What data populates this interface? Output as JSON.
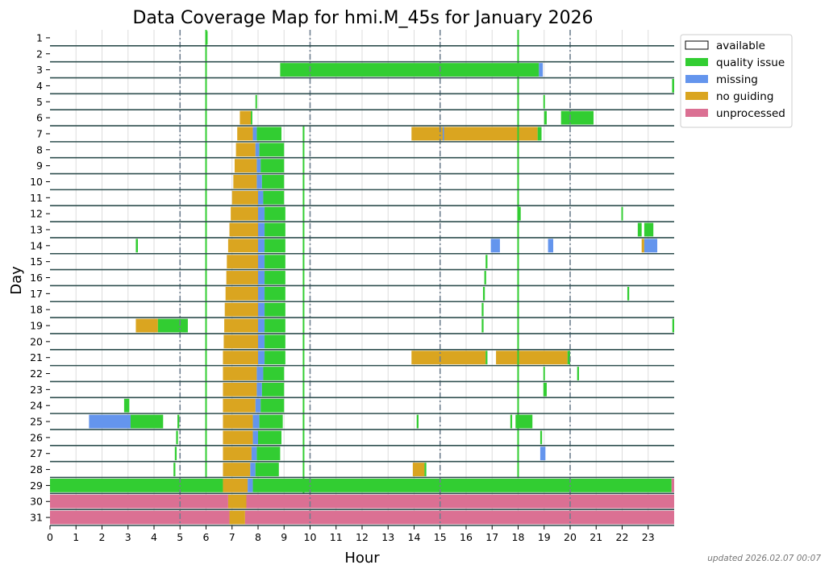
{
  "chart_data": {
    "type": "coverage-map",
    "title": "Data Coverage Map for hmi.M_45s for January 2026",
    "xlabel": "Hour",
    "ylabel": "Day",
    "xlim": [
      0,
      24
    ],
    "x_ticks": [
      "0",
      "1",
      "2",
      "3",
      "4",
      "5",
      "6",
      "7",
      "8",
      "9",
      "10",
      "11",
      "12",
      "13",
      "14",
      "15",
      "16",
      "17",
      "18",
      "19",
      "20",
      "21",
      "22",
      "23"
    ],
    "days": [
      "1",
      "2",
      "3",
      "4",
      "5",
      "6",
      "7",
      "8",
      "9",
      "10",
      "11",
      "12",
      "13",
      "14",
      "15",
      "16",
      "17",
      "18",
      "19",
      "20",
      "21",
      "22",
      "23",
      "24",
      "25",
      "26",
      "27",
      "28",
      "29",
      "30",
      "31"
    ],
    "dashed_hours": [
      5,
      10,
      15,
      20
    ],
    "legend": [
      {
        "key": "available",
        "label": "available",
        "color": "#ffffff"
      },
      {
        "key": "quality",
        "label": "quality issue",
        "color": "#32cd32"
      },
      {
        "key": "missing",
        "label": "missing",
        "color": "#6495ed"
      },
      {
        "key": "noguide",
        "label": "no guiding",
        "color": "#daa520"
      },
      {
        "key": "unproc",
        "label": "unprocessed",
        "color": "#db7093"
      }
    ],
    "colors": {
      "quality": "#32cd32",
      "missing": "#6495ed",
      "noguide": "#daa520",
      "unproc": "#db7093",
      "row_line": "#2f4f4f"
    },
    "segments": [
      {
        "day": 1,
        "type": "quality",
        "start": 6.0,
        "end": 6.06
      },
      {
        "day": 1,
        "type": "quality",
        "start": 17.97,
        "end": 18.03
      },
      {
        "day": 3,
        "type": "quality",
        "start": 8.85,
        "end": 18.8
      },
      {
        "day": 3,
        "type": "missing",
        "start": 18.8,
        "end": 18.95
      },
      {
        "day": 4,
        "type": "quality",
        "start": 23.92,
        "end": 24.0
      },
      {
        "day": 5,
        "type": "quality",
        "start": 7.9,
        "end": 7.96
      },
      {
        "day": 5,
        "type": "quality",
        "start": 18.97,
        "end": 19.03
      },
      {
        "day": 6,
        "type": "noguide",
        "start": 7.3,
        "end": 7.72
      },
      {
        "day": 6,
        "type": "quality",
        "start": 7.72,
        "end": 7.78
      },
      {
        "day": 6,
        "type": "quality",
        "start": 19.0,
        "end": 19.1
      },
      {
        "day": 6,
        "type": "quality",
        "start": 19.65,
        "end": 20.9
      },
      {
        "day": 7,
        "type": "noguide",
        "start": 7.2,
        "end": 7.8
      },
      {
        "day": 7,
        "type": "missing",
        "start": 7.8,
        "end": 7.95
      },
      {
        "day": 7,
        "type": "quality",
        "start": 7.95,
        "end": 8.9
      },
      {
        "day": 7,
        "type": "quality",
        "start": 9.72,
        "end": 9.78
      },
      {
        "day": 7,
        "type": "noguide",
        "start": 13.9,
        "end": 18.75
      },
      {
        "day": 7,
        "type": "missing",
        "start": 15.1,
        "end": 15.15
      },
      {
        "day": 7,
        "type": "quality",
        "start": 18.75,
        "end": 18.9
      },
      {
        "day": 8,
        "type": "noguide",
        "start": 7.15,
        "end": 7.9
      },
      {
        "day": 8,
        "type": "missing",
        "start": 7.9,
        "end": 8.05
      },
      {
        "day": 8,
        "type": "quality",
        "start": 8.05,
        "end": 9.0
      },
      {
        "day": 9,
        "type": "noguide",
        "start": 7.1,
        "end": 7.95
      },
      {
        "day": 9,
        "type": "missing",
        "start": 7.95,
        "end": 8.1
      },
      {
        "day": 9,
        "type": "quality",
        "start": 8.1,
        "end": 9.0
      },
      {
        "day": 10,
        "type": "noguide",
        "start": 7.05,
        "end": 7.95
      },
      {
        "day": 10,
        "type": "missing",
        "start": 7.95,
        "end": 8.15
      },
      {
        "day": 10,
        "type": "quality",
        "start": 8.15,
        "end": 9.0
      },
      {
        "day": 11,
        "type": "noguide",
        "start": 7.0,
        "end": 8.0
      },
      {
        "day": 11,
        "type": "missing",
        "start": 8.0,
        "end": 8.2
      },
      {
        "day": 11,
        "type": "quality",
        "start": 8.2,
        "end": 9.0
      },
      {
        "day": 12,
        "type": "noguide",
        "start": 6.95,
        "end": 8.0
      },
      {
        "day": 12,
        "type": "missing",
        "start": 8.0,
        "end": 8.25
      },
      {
        "day": 12,
        "type": "quality",
        "start": 8.25,
        "end": 9.05
      },
      {
        "day": 12,
        "type": "quality",
        "start": 18.0,
        "end": 18.1
      },
      {
        "day": 12,
        "type": "quality",
        "start": 21.97,
        "end": 22.03
      },
      {
        "day": 13,
        "type": "noguide",
        "start": 6.9,
        "end": 8.0
      },
      {
        "day": 13,
        "type": "missing",
        "start": 8.0,
        "end": 8.25
      },
      {
        "day": 13,
        "type": "quality",
        "start": 8.25,
        "end": 9.05
      },
      {
        "day": 13,
        "type": "quality",
        "start": 22.6,
        "end": 22.75
      },
      {
        "day": 13,
        "type": "quality",
        "start": 22.85,
        "end": 23.2
      },
      {
        "day": 14,
        "type": "quality",
        "start": 3.3,
        "end": 3.38
      },
      {
        "day": 14,
        "type": "noguide",
        "start": 6.85,
        "end": 8.0
      },
      {
        "day": 14,
        "type": "missing",
        "start": 8.0,
        "end": 8.25
      },
      {
        "day": 14,
        "type": "quality",
        "start": 8.25,
        "end": 9.05
      },
      {
        "day": 14,
        "type": "missing",
        "start": 16.95,
        "end": 17.3
      },
      {
        "day": 14,
        "type": "missing",
        "start": 19.15,
        "end": 19.35
      },
      {
        "day": 14,
        "type": "noguide",
        "start": 22.75,
        "end": 22.85
      },
      {
        "day": 14,
        "type": "missing",
        "start": 22.85,
        "end": 23.35
      },
      {
        "day": 15,
        "type": "noguide",
        "start": 6.8,
        "end": 8.0
      },
      {
        "day": 15,
        "type": "missing",
        "start": 8.0,
        "end": 8.25
      },
      {
        "day": 15,
        "type": "quality",
        "start": 8.25,
        "end": 9.05
      },
      {
        "day": 15,
        "type": "quality",
        "start": 16.75,
        "end": 16.82
      },
      {
        "day": 16,
        "type": "noguide",
        "start": 6.78,
        "end": 8.0
      },
      {
        "day": 16,
        "type": "missing",
        "start": 8.0,
        "end": 8.25
      },
      {
        "day": 16,
        "type": "quality",
        "start": 8.25,
        "end": 9.05
      },
      {
        "day": 16,
        "type": "quality",
        "start": 16.7,
        "end": 16.77
      },
      {
        "day": 17,
        "type": "noguide",
        "start": 6.75,
        "end": 8.0
      },
      {
        "day": 17,
        "type": "missing",
        "start": 8.0,
        "end": 8.25
      },
      {
        "day": 17,
        "type": "quality",
        "start": 8.25,
        "end": 9.05
      },
      {
        "day": 17,
        "type": "quality",
        "start": 16.65,
        "end": 16.72
      },
      {
        "day": 17,
        "type": "quality",
        "start": 22.2,
        "end": 22.27
      },
      {
        "day": 18,
        "type": "noguide",
        "start": 6.72,
        "end": 8.0
      },
      {
        "day": 18,
        "type": "missing",
        "start": 8.0,
        "end": 8.25
      },
      {
        "day": 18,
        "type": "quality",
        "start": 8.25,
        "end": 9.05
      },
      {
        "day": 18,
        "type": "quality",
        "start": 16.6,
        "end": 16.67
      },
      {
        "day": 19,
        "type": "noguide",
        "start": 3.3,
        "end": 4.15
      },
      {
        "day": 19,
        "type": "quality",
        "start": 4.15,
        "end": 5.3
      },
      {
        "day": 19,
        "type": "noguide",
        "start": 6.7,
        "end": 8.0
      },
      {
        "day": 19,
        "type": "missing",
        "start": 8.0,
        "end": 8.25
      },
      {
        "day": 19,
        "type": "quality",
        "start": 8.25,
        "end": 9.05
      },
      {
        "day": 19,
        "type": "quality",
        "start": 16.6,
        "end": 16.67
      },
      {
        "day": 19,
        "type": "quality",
        "start": 23.93,
        "end": 24.0
      },
      {
        "day": 20,
        "type": "noguide",
        "start": 6.68,
        "end": 8.0
      },
      {
        "day": 20,
        "type": "missing",
        "start": 8.0,
        "end": 8.25
      },
      {
        "day": 20,
        "type": "quality",
        "start": 8.25,
        "end": 9.05
      },
      {
        "day": 21,
        "type": "noguide",
        "start": 6.65,
        "end": 8.0
      },
      {
        "day": 21,
        "type": "missing",
        "start": 8.0,
        "end": 8.25
      },
      {
        "day": 21,
        "type": "quality",
        "start": 8.25,
        "end": 9.05
      },
      {
        "day": 21,
        "type": "noguide",
        "start": 13.9,
        "end": 16.75
      },
      {
        "day": 21,
        "type": "quality",
        "start": 16.75,
        "end": 16.82
      },
      {
        "day": 21,
        "type": "noguide",
        "start": 17.15,
        "end": 19.9
      },
      {
        "day": 21,
        "type": "quality",
        "start": 19.9,
        "end": 20.0
      },
      {
        "day": 22,
        "type": "noguide",
        "start": 6.65,
        "end": 7.95
      },
      {
        "day": 22,
        "type": "missing",
        "start": 7.95,
        "end": 8.2
      },
      {
        "day": 22,
        "type": "quality",
        "start": 8.2,
        "end": 9.0
      },
      {
        "day": 22,
        "type": "quality",
        "start": 18.97,
        "end": 19.03
      },
      {
        "day": 22,
        "type": "quality",
        "start": 20.27,
        "end": 20.34
      },
      {
        "day": 23,
        "type": "noguide",
        "start": 6.65,
        "end": 7.95
      },
      {
        "day": 23,
        "type": "missing",
        "start": 7.95,
        "end": 8.15
      },
      {
        "day": 23,
        "type": "quality",
        "start": 8.15,
        "end": 9.0
      },
      {
        "day": 23,
        "type": "quality",
        "start": 18.97,
        "end": 19.1
      },
      {
        "day": 24,
        "type": "quality",
        "start": 2.85,
        "end": 3.05
      },
      {
        "day": 24,
        "type": "noguide",
        "start": 6.65,
        "end": 7.9
      },
      {
        "day": 24,
        "type": "missing",
        "start": 7.9,
        "end": 8.1
      },
      {
        "day": 24,
        "type": "quality",
        "start": 8.1,
        "end": 9.0
      },
      {
        "day": 25,
        "type": "missing",
        "start": 1.5,
        "end": 3.1
      },
      {
        "day": 25,
        "type": "quality",
        "start": 3.1,
        "end": 4.35
      },
      {
        "day": 25,
        "type": "quality",
        "start": 4.9,
        "end": 4.97
      },
      {
        "day": 25,
        "type": "noguide",
        "start": 6.65,
        "end": 7.8
      },
      {
        "day": 25,
        "type": "missing",
        "start": 7.8,
        "end": 8.05
      },
      {
        "day": 25,
        "type": "quality",
        "start": 8.05,
        "end": 8.95
      },
      {
        "day": 25,
        "type": "quality",
        "start": 14.1,
        "end": 14.17
      },
      {
        "day": 25,
        "type": "quality",
        "start": 17.7,
        "end": 17.77
      },
      {
        "day": 25,
        "type": "quality",
        "start": 17.9,
        "end": 18.55
      },
      {
        "day": 26,
        "type": "quality",
        "start": 4.85,
        "end": 4.92
      },
      {
        "day": 26,
        "type": "noguide",
        "start": 6.65,
        "end": 7.8
      },
      {
        "day": 26,
        "type": "missing",
        "start": 7.8,
        "end": 8.0
      },
      {
        "day": 26,
        "type": "quality",
        "start": 8.0,
        "end": 8.9
      },
      {
        "day": 26,
        "type": "quality",
        "start": 18.85,
        "end": 18.92
      },
      {
        "day": 27,
        "type": "quality",
        "start": 4.8,
        "end": 4.87
      },
      {
        "day": 27,
        "type": "noguide",
        "start": 6.65,
        "end": 7.75
      },
      {
        "day": 27,
        "type": "missing",
        "start": 7.75,
        "end": 7.95
      },
      {
        "day": 27,
        "type": "quality",
        "start": 7.95,
        "end": 8.85
      },
      {
        "day": 27,
        "type": "missing",
        "start": 18.85,
        "end": 19.05
      },
      {
        "day": 28,
        "type": "quality",
        "start": 4.75,
        "end": 4.82
      },
      {
        "day": 28,
        "type": "noguide",
        "start": 6.65,
        "end": 7.7
      },
      {
        "day": 28,
        "type": "missing",
        "start": 7.7,
        "end": 7.9
      },
      {
        "day": 28,
        "type": "quality",
        "start": 7.9,
        "end": 8.8
      },
      {
        "day": 28,
        "type": "noguide",
        "start": 13.95,
        "end": 14.4
      },
      {
        "day": 28,
        "type": "quality",
        "start": 14.4,
        "end": 14.47
      },
      {
        "day": 29,
        "type": "quality",
        "start": 0.0,
        "end": 6.65
      },
      {
        "day": 29,
        "type": "noguide",
        "start": 6.65,
        "end": 7.6
      },
      {
        "day": 29,
        "type": "missing",
        "start": 7.6,
        "end": 7.8
      },
      {
        "day": 29,
        "type": "quality",
        "start": 7.8,
        "end": 23.9
      },
      {
        "day": 29,
        "type": "unproc",
        "start": 23.9,
        "end": 24.0
      },
      {
        "day": 30,
        "type": "unproc",
        "start": 0.0,
        "end": 6.85
      },
      {
        "day": 30,
        "type": "noguide",
        "start": 6.85,
        "end": 7.55
      },
      {
        "day": 30,
        "type": "unproc",
        "start": 7.55,
        "end": 24.0
      },
      {
        "day": 31,
        "type": "unproc",
        "start": 0.0,
        "end": 6.9
      },
      {
        "day": 31,
        "type": "noguide",
        "start": 6.9,
        "end": 7.5
      },
      {
        "day": 31,
        "type": "unproc",
        "start": 7.5,
        "end": 24.0
      }
    ],
    "vertical_marks": [
      {
        "hour": 6.0,
        "type": "quality",
        "days": [
          1,
          2,
          3,
          4,
          5,
          6,
          7,
          8,
          9,
          10,
          11,
          12,
          13,
          14,
          15,
          16,
          17,
          18,
          19,
          20,
          21,
          22,
          23,
          24,
          25,
          26,
          27,
          28
        ]
      },
      {
        "hour": 18.0,
        "type": "quality",
        "days": [
          1,
          2,
          3,
          4,
          5,
          6,
          7,
          8,
          9,
          10,
          11,
          12,
          13,
          14,
          15,
          16,
          17,
          18,
          19,
          20,
          21,
          22,
          23,
          24,
          25,
          26,
          27,
          28
        ]
      },
      {
        "hour": 9.75,
        "type": "quality",
        "days": [
          7,
          8,
          9,
          10,
          11,
          12,
          13,
          14,
          15,
          16,
          17,
          18,
          19,
          20,
          21,
          22,
          23,
          24,
          25,
          26,
          27,
          28,
          29
        ]
      }
    ]
  },
  "footnote": "updated 2026.02.07 00:07"
}
